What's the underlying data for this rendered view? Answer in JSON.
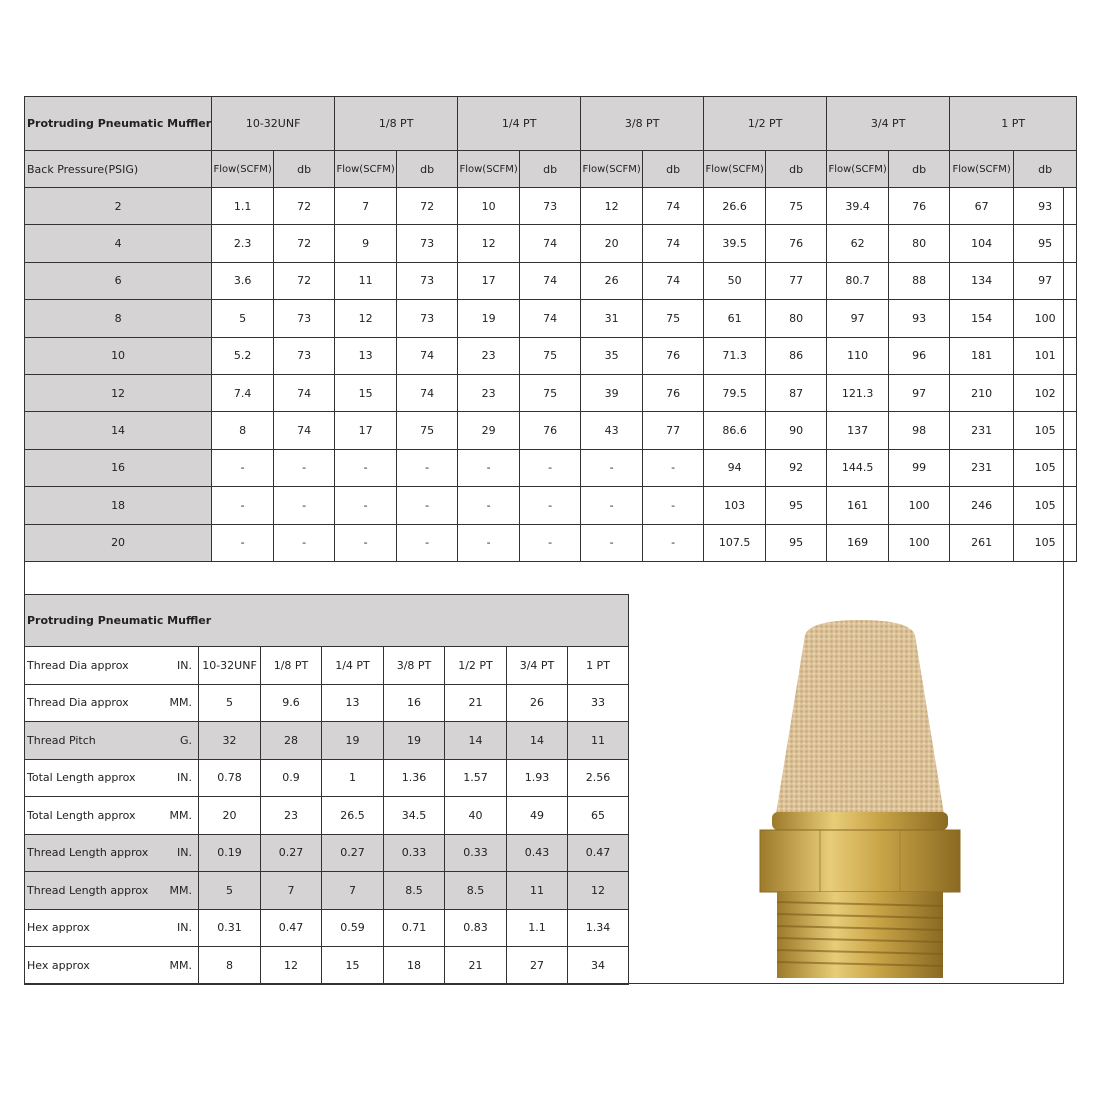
{
  "flow_table": {
    "title": "Protruding Pneumatic Muffler",
    "sizes": [
      "10-32UNF",
      "1/8 PT",
      "1/4 PT",
      "3/8 PT",
      "1/2 PT",
      "3/4 PT",
      "1 PT"
    ],
    "row_header": "Back Pressure(PSIG)",
    "flow_label": "Flow(SCFM)",
    "db_label": "db",
    "rows": [
      {
        "psig": "2",
        "values": [
          "1.1",
          "72",
          "7",
          "72",
          "10",
          "73",
          "12",
          "74",
          "26.6",
          "75",
          "39.4",
          "76",
          "67",
          "93"
        ]
      },
      {
        "psig": "4",
        "values": [
          "2.3",
          "72",
          "9",
          "73",
          "12",
          "74",
          "20",
          "74",
          "39.5",
          "76",
          "62",
          "80",
          "104",
          "95"
        ]
      },
      {
        "psig": "6",
        "values": [
          "3.6",
          "72",
          "11",
          "73",
          "17",
          "74",
          "26",
          "74",
          "50",
          "77",
          "80.7",
          "88",
          "134",
          "97"
        ]
      },
      {
        "psig": "8",
        "values": [
          "5",
          "73",
          "12",
          "73",
          "19",
          "74",
          "31",
          "75",
          "61",
          "80",
          "97",
          "93",
          "154",
          "100"
        ]
      },
      {
        "psig": "10",
        "values": [
          "5.2",
          "73",
          "13",
          "74",
          "23",
          "75",
          "35",
          "76",
          "71.3",
          "86",
          "110",
          "96",
          "181",
          "101"
        ]
      },
      {
        "psig": "12",
        "values": [
          "7.4",
          "74",
          "15",
          "74",
          "23",
          "75",
          "39",
          "76",
          "79.5",
          "87",
          "121.3",
          "97",
          "210",
          "102"
        ]
      },
      {
        "psig": "14",
        "values": [
          "8",
          "74",
          "17",
          "75",
          "29",
          "76",
          "43",
          "77",
          "86.6",
          "90",
          "137",
          "98",
          "231",
          "105"
        ]
      },
      {
        "psig": "16",
        "values": [
          "-",
          "-",
          "-",
          "-",
          "-",
          "-",
          "-",
          "-",
          "94",
          "92",
          "144.5",
          "99",
          "231",
          "105"
        ]
      },
      {
        "psig": "18",
        "values": [
          "-",
          "-",
          "-",
          "-",
          "-",
          "-",
          "-",
          "-",
          "103",
          "95",
          "161",
          "100",
          "246",
          "105"
        ]
      },
      {
        "psig": "20",
        "values": [
          "-",
          "-",
          "-",
          "-",
          "-",
          "-",
          "-",
          "-",
          "107.5",
          "95",
          "169",
          "100",
          "261",
          "105"
        ]
      }
    ]
  },
  "dim_table": {
    "title": "Protruding Pneumatic Muffler",
    "rows": [
      {
        "label": "Thread Dia approx",
        "unit": "IN.",
        "shaded": false,
        "values": [
          "10-32UNF",
          "1/8 PT",
          "1/4 PT",
          "3/8 PT",
          "1/2 PT",
          "3/4 PT",
          "1 PT"
        ]
      },
      {
        "label": "Thread Dia approx",
        "unit": "MM.",
        "shaded": false,
        "values": [
          "5",
          "9.6",
          "13",
          "16",
          "21",
          "26",
          "33"
        ]
      },
      {
        "label": "Thread Pitch",
        "unit": "G.",
        "shaded": true,
        "values": [
          "32",
          "28",
          "19",
          "19",
          "14",
          "14",
          "11"
        ]
      },
      {
        "label": "Total Length approx",
        "unit": "IN.",
        "shaded": false,
        "values": [
          "0.78",
          "0.9",
          "1",
          "1.36",
          "1.57",
          "1.93",
          "2.56"
        ]
      },
      {
        "label": "Total Length approx",
        "unit": "MM.",
        "shaded": false,
        "values": [
          "20",
          "23",
          "26.5",
          "34.5",
          "40",
          "49",
          "65"
        ]
      },
      {
        "label": "Thread Length approx",
        "unit": "IN.",
        "shaded": true,
        "values": [
          "0.19",
          "0.27",
          "0.27",
          "0.33",
          "0.33",
          "0.43",
          "0.47"
        ]
      },
      {
        "label": "Thread Length approx",
        "unit": "MM.",
        "shaded": true,
        "values": [
          "5",
          "7",
          "7",
          "8.5",
          "8.5",
          "11",
          "12"
        ]
      },
      {
        "label": "Hex approx",
        "unit": "IN.",
        "shaded": false,
        "values": [
          "0.31",
          "0.47",
          "0.59",
          "0.71",
          "0.83",
          "1.1",
          "1.34"
        ]
      },
      {
        "label": "Hex approx",
        "unit": "MM.",
        "shaded": false,
        "values": [
          "8",
          "12",
          "15",
          "18",
          "21",
          "27",
          "34"
        ]
      }
    ]
  },
  "colors": {
    "header_gray": "#d6d3d4",
    "brass": "#c9a548",
    "bronze": "#d9bf94"
  },
  "image": {
    "subject": "brass-pneumatic-muffler"
  }
}
